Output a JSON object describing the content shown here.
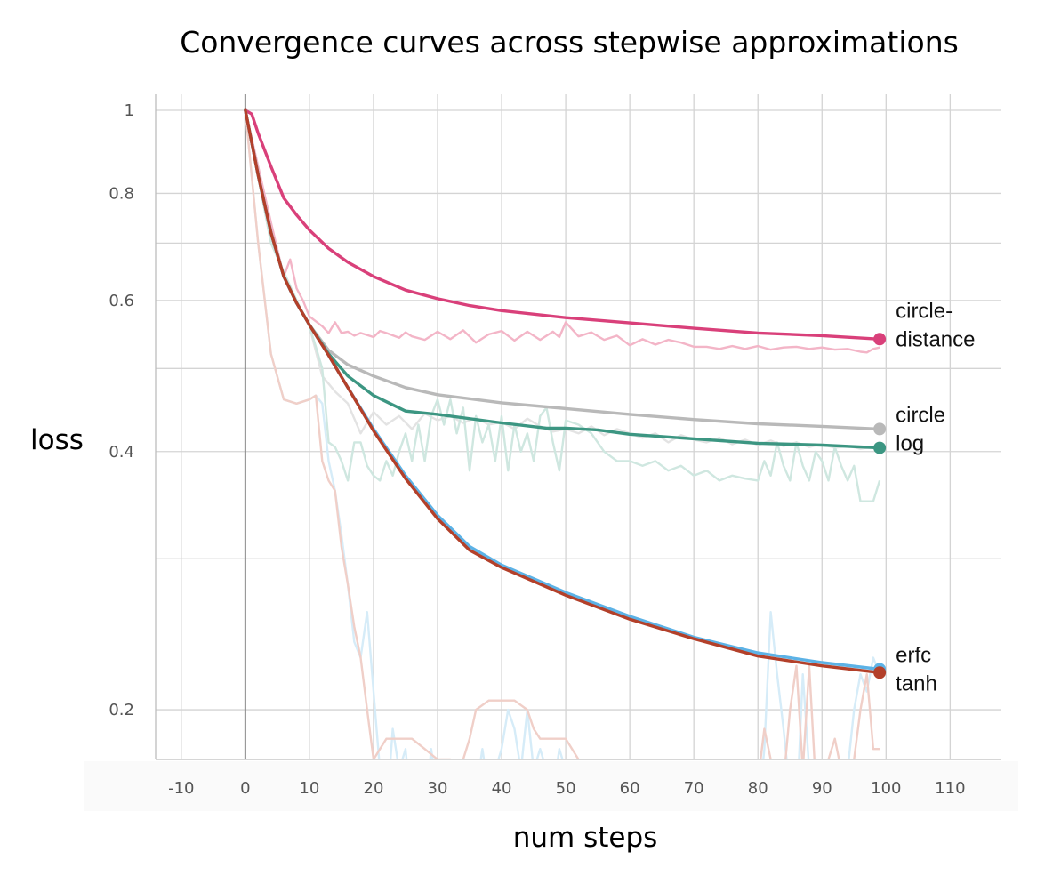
{
  "chart_data": {
    "type": "line",
    "title": "Convergence curves across stepwise approximations",
    "xlabel": "num steps",
    "ylabel": "loss",
    "xlim": [
      -14,
      118
    ],
    "ylim": [
      0.175,
      1.0
    ],
    "yscale": "log",
    "grid": true,
    "x_ticks": [
      -10,
      0,
      10,
      20,
      30,
      40,
      50,
      60,
      70,
      80,
      90,
      100,
      110
    ],
    "x_tick_labels": [
      "-10",
      "0",
      "10",
      "20",
      "30",
      "40",
      "50",
      "60",
      "70",
      "80",
      "90",
      "100",
      "110"
    ],
    "y_grid": [
      1.0,
      0.8,
      0.7,
      0.6,
      0.5,
      0.4,
      0.3,
      0.2
    ],
    "y_ticks": [
      1.0,
      0.8,
      0.6,
      0.4,
      0.2
    ],
    "y_tick_labels": [
      "1",
      "0.8",
      "0.6",
      "0.4",
      "0.2"
    ],
    "series": [
      {
        "name": "circle-distance",
        "label_lines": [
          "circle-",
          "distance"
        ],
        "color": "#d9407a",
        "x": [
          0,
          1,
          2,
          4,
          6,
          8,
          10,
          13,
          16,
          20,
          25,
          30,
          35,
          40,
          50,
          60,
          70,
          80,
          90,
          99
        ],
        "values": [
          1.0,
          0.99,
          0.94,
          0.86,
          0.79,
          0.755,
          0.725,
          0.69,
          0.665,
          0.64,
          0.617,
          0.603,
          0.592,
          0.584,
          0.573,
          0.565,
          0.557,
          0.55,
          0.546,
          0.541
        ]
      },
      {
        "name": "circle",
        "label_lines": [
          "circle"
        ],
        "color": "#b9b9b9",
        "x": [
          0,
          2,
          4,
          6,
          8,
          10,
          13,
          16,
          20,
          25,
          30,
          40,
          50,
          60,
          70,
          80,
          90,
          99
        ],
        "values": [
          1.0,
          0.84,
          0.72,
          0.64,
          0.596,
          0.562,
          0.525,
          0.505,
          0.49,
          0.475,
          0.466,
          0.456,
          0.449,
          0.442,
          0.436,
          0.431,
          0.428,
          0.425
        ]
      },
      {
        "name": "log",
        "label_lines": [
          "log"
        ],
        "color": "#3c9682",
        "x": [
          0,
          2,
          4,
          6,
          8,
          10,
          13,
          16,
          20,
          25,
          30,
          40,
          47,
          50,
          55,
          60,
          70,
          80,
          90,
          99
        ],
        "values": [
          1.0,
          0.84,
          0.72,
          0.64,
          0.596,
          0.562,
          0.52,
          0.49,
          0.465,
          0.446,
          0.442,
          0.432,
          0.426,
          0.426,
          0.424,
          0.419,
          0.414,
          0.409,
          0.407,
          0.404
        ]
      },
      {
        "name": "erfc",
        "label_lines": [
          "erfc"
        ],
        "color": "#5cb2e6",
        "x": [
          0,
          2,
          4,
          6,
          8,
          10,
          13,
          16,
          20,
          25,
          30,
          35,
          40,
          50,
          60,
          70,
          80,
          90,
          99
        ],
        "values": [
          1.0,
          0.84,
          0.72,
          0.64,
          0.596,
          0.562,
          0.518,
          0.475,
          0.425,
          0.375,
          0.337,
          0.31,
          0.295,
          0.274,
          0.257,
          0.243,
          0.233,
          0.227,
          0.223
        ]
      },
      {
        "name": "tanh",
        "label_lines": [
          "tanh"
        ],
        "color": "#b3402a",
        "x": [
          0,
          2,
          4,
          6,
          8,
          10,
          13,
          16,
          20,
          25,
          30,
          35,
          40,
          50,
          60,
          70,
          80,
          90,
          99
        ],
        "values": [
          1.0,
          0.84,
          0.72,
          0.64,
          0.596,
          0.562,
          0.518,
          0.475,
          0.423,
          0.372,
          0.334,
          0.307,
          0.293,
          0.272,
          0.255,
          0.242,
          0.231,
          0.225,
          0.221
        ]
      }
    ],
    "raw_series": [
      {
        "name": "circle-distance (raw)",
        "color": "#f3b5c7",
        "x": [
          0,
          2,
          4,
          6,
          7,
          8,
          9,
          10,
          12,
          13,
          14,
          15,
          16,
          17,
          18,
          20,
          21,
          22,
          24,
          25,
          26,
          28,
          30,
          32,
          34,
          36,
          38,
          40,
          42,
          44,
          46,
          48,
          49,
          50,
          52,
          54,
          56,
          58,
          60,
          62,
          64,
          66,
          68,
          70,
          72,
          74,
          76,
          78,
          80,
          82,
          84,
          86,
          88,
          90,
          92,
          94,
          96,
          97,
          98,
          99
        ],
        "values": [
          1.0,
          0.86,
          0.74,
          0.64,
          0.67,
          0.62,
          0.6,
          0.575,
          0.56,
          0.55,
          0.566,
          0.55,
          0.552,
          0.546,
          0.55,
          0.544,
          0.553,
          0.55,
          0.543,
          0.551,
          0.545,
          0.54,
          0.552,
          0.541,
          0.554,
          0.536,
          0.548,
          0.553,
          0.539,
          0.552,
          0.54,
          0.552,
          0.544,
          0.566,
          0.545,
          0.551,
          0.54,
          0.546,
          0.532,
          0.541,
          0.533,
          0.54,
          0.536,
          0.53,
          0.53,
          0.527,
          0.531,
          0.527,
          0.531,
          0.526,
          0.529,
          0.53,
          0.527,
          0.529,
          0.526,
          0.527,
          0.523,
          0.522,
          0.527,
          0.529
        ]
      },
      {
        "name": "circle (raw)",
        "color": "#e3e3e3",
        "x": [
          0,
          4,
          8,
          10,
          12,
          14,
          16,
          18,
          20,
          22,
          24,
          26,
          28,
          30,
          32,
          34,
          36,
          38,
          40,
          42,
          44,
          46,
          48,
          50,
          52,
          54,
          56,
          58,
          60,
          62,
          64,
          66,
          68,
          70,
          72,
          74,
          76,
          78,
          80,
          82,
          84,
          86,
          88,
          90,
          92,
          94,
          96,
          98,
          99
        ],
        "values": [
          1.0,
          0.7,
          0.6,
          0.56,
          0.49,
          0.47,
          0.455,
          0.42,
          0.445,
          0.43,
          0.44,
          0.425,
          0.443,
          0.435,
          0.44,
          0.432,
          0.438,
          0.43,
          0.433,
          0.425,
          0.437,
          0.428,
          0.422,
          0.425,
          0.42,
          0.428,
          0.418,
          0.425,
          0.42,
          0.415,
          0.42,
          0.41,
          0.418,
          0.413,
          0.41,
          0.415,
          0.408,
          0.413,
          0.407,
          0.412,
          0.406,
          0.41,
          0.405,
          0.408,
          0.404,
          0.406,
          0.403,
          0.405,
          0.404
        ]
      },
      {
        "name": "log (raw)",
        "color": "#cfe7e0",
        "x": [
          0,
          4,
          8,
          10,
          11,
          12,
          13,
          14,
          15,
          16,
          17,
          18,
          19,
          20,
          21,
          22,
          23,
          24,
          25,
          26,
          27,
          28,
          29,
          30,
          31,
          32,
          33,
          34,
          35,
          36,
          37,
          38,
          39,
          40,
          41,
          42,
          43,
          44,
          45,
          46,
          47,
          48,
          49,
          50,
          52,
          54,
          56,
          58,
          60,
          62,
          64,
          66,
          68,
          70,
          72,
          74,
          76,
          78,
          80,
          81,
          82,
          83,
          84,
          85,
          86,
          87,
          88,
          89,
          90,
          91,
          92,
          93,
          94,
          95,
          96,
          97,
          98,
          99
        ],
        "values": [
          1.0,
          0.7,
          0.6,
          0.56,
          0.53,
          0.5,
          0.41,
          0.405,
          0.39,
          0.37,
          0.41,
          0.41,
          0.385,
          0.375,
          0.37,
          0.39,
          0.375,
          0.4,
          0.42,
          0.39,
          0.43,
          0.39,
          0.44,
          0.46,
          0.43,
          0.46,
          0.42,
          0.45,
          0.38,
          0.44,
          0.41,
          0.43,
          0.39,
          0.44,
          0.38,
          0.43,
          0.4,
          0.42,
          0.39,
          0.44,
          0.45,
          0.41,
          0.38,
          0.435,
          0.43,
          0.42,
          0.4,
          0.39,
          0.39,
          0.385,
          0.39,
          0.38,
          0.385,
          0.375,
          0.38,
          0.37,
          0.375,
          0.372,
          0.37,
          0.39,
          0.375,
          0.41,
          0.385,
          0.37,
          0.41,
          0.385,
          0.37,
          0.4,
          0.39,
          0.37,
          0.405,
          0.385,
          0.37,
          0.385,
          0.35,
          0.35,
          0.35,
          0.37
        ]
      },
      {
        "name": "erfc (raw)",
        "color": "#d6ecf8",
        "x": [
          0,
          2,
          4,
          6,
          8,
          10,
          11,
          12,
          13,
          14,
          15,
          16,
          17,
          18,
          19,
          20,
          21,
          22,
          23,
          24,
          25,
          26,
          27,
          28,
          29,
          30,
          31,
          32,
          33,
          34,
          35,
          36,
          37,
          38,
          39,
          40,
          41,
          42,
          43,
          44,
          45,
          46,
          47,
          48,
          49,
          50,
          52,
          55,
          60,
          70,
          80,
          81,
          82,
          83,
          84,
          85,
          86,
          87,
          88,
          89,
          90,
          91,
          92,
          93,
          94,
          95,
          96,
          97,
          98,
          99
        ],
        "values": [
          1.0,
          0.7,
          0.52,
          0.46,
          0.455,
          0.46,
          0.465,
          0.455,
          0.39,
          0.36,
          0.32,
          0.28,
          0.24,
          0.23,
          0.26,
          0.21,
          0.17,
          0.15,
          0.19,
          0.17,
          0.18,
          0.15,
          0.17,
          0.15,
          0.18,
          0.16,
          0.17,
          0.16,
          0.14,
          0.15,
          0.17,
          0.16,
          0.18,
          0.16,
          0.17,
          0.18,
          0.2,
          0.19,
          0.17,
          0.2,
          0.17,
          0.18,
          0.17,
          0.16,
          0.18,
          0.17,
          0.17,
          0.16,
          0.15,
          0.15,
          0.15,
          0.18,
          0.26,
          0.22,
          0.19,
          0.16,
          0.15,
          0.22,
          0.17,
          0.15,
          0.14,
          0.16,
          0.15,
          0.16,
          0.17,
          0.2,
          0.22,
          0.21,
          0.23,
          0.22
        ]
      },
      {
        "name": "tanh (raw)",
        "color": "#f0cfc8",
        "x": [
          0,
          2,
          4,
          6,
          8,
          10,
          11,
          12,
          13,
          14,
          15,
          16,
          17,
          18,
          19,
          20,
          21,
          22,
          24,
          26,
          28,
          30,
          32,
          33,
          34,
          35,
          36,
          38,
          40,
          42,
          44,
          45,
          46,
          48,
          50,
          52,
          55,
          60,
          70,
          80,
          81,
          82,
          83,
          84,
          85,
          86,
          87,
          88,
          89,
          90,
          91,
          92,
          93,
          94,
          95,
          96,
          97,
          98,
          99
        ],
        "values": [
          1.0,
          0.7,
          0.52,
          0.46,
          0.455,
          0.46,
          0.465,
          0.39,
          0.37,
          0.36,
          0.31,
          0.28,
          0.25,
          0.23,
          0.2,
          0.175,
          0.18,
          0.185,
          0.185,
          0.185,
          0.18,
          0.175,
          0.175,
          0.165,
          0.175,
          0.185,
          0.2,
          0.205,
          0.205,
          0.205,
          0.2,
          0.19,
          0.185,
          0.185,
          0.185,
          0.175,
          0.17,
          0.16,
          0.155,
          0.165,
          0.19,
          0.175,
          0.17,
          0.165,
          0.2,
          0.225,
          0.17,
          0.225,
          0.165,
          0.16,
          0.175,
          0.185,
          0.17,
          0.165,
          0.175,
          0.2,
          0.22,
          0.18,
          0.18
        ]
      }
    ]
  }
}
